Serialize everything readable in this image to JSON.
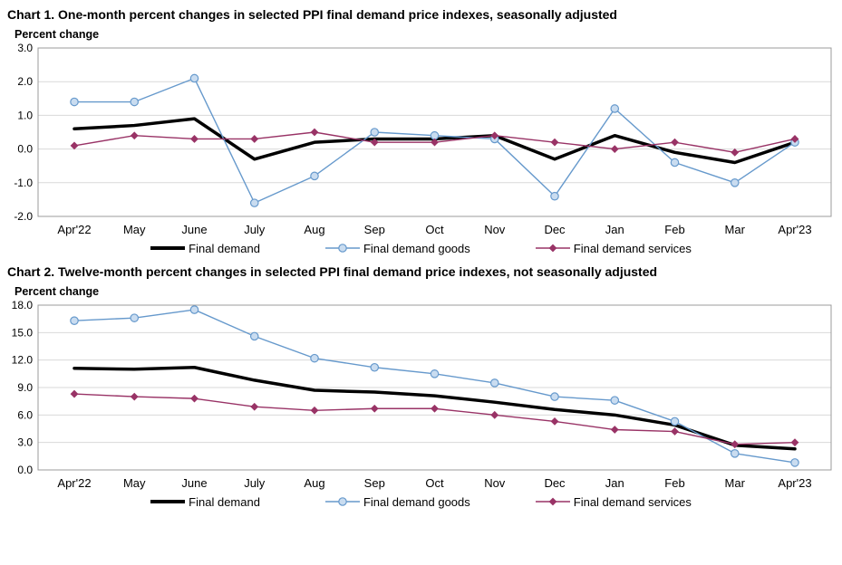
{
  "colors": {
    "grid": "#D9D9D9",
    "plot_border": "#9B9B9B",
    "text": "#000000",
    "background": "#FFFFFF",
    "final_demand": "#000000",
    "goods_line": "#6699CC",
    "goods_marker_fill": "#C9DCF0",
    "services_line": "#993366"
  },
  "chart_data": [
    {
      "type": "line",
      "title": "Chart 1. One-month percent changes in selected PPI final demand price indexes, seasonally adjusted",
      "ylabel": "Percent change",
      "xlabel": "",
      "grid": true,
      "legend_position": "bottom",
      "ylim": [
        -2.0,
        3.0
      ],
      "ytick_step": 1.0,
      "categories": [
        "Apr'22",
        "May",
        "June",
        "July",
        "Aug",
        "Sep",
        "Oct",
        "Nov",
        "Dec",
        "Jan",
        "Feb",
        "Mar",
        "Apr'23"
      ],
      "series": [
        {
          "name": "Final demand",
          "color": "#000000",
          "line_width": 3.5,
          "marker": "none",
          "values": [
            0.6,
            0.7,
            0.9,
            -0.3,
            0.2,
            0.3,
            0.3,
            0.4,
            -0.3,
            0.4,
            -0.1,
            -0.4,
            0.2
          ]
        },
        {
          "name": "Final demand goods",
          "color": "#6699CC",
          "marker_fill": "#C9DCF0",
          "line_width": 1.4,
          "marker": "circle",
          "values": [
            1.4,
            1.4,
            2.1,
            -1.6,
            -0.8,
            0.5,
            0.4,
            0.3,
            -1.4,
            1.2,
            -0.4,
            -1.0,
            0.2
          ]
        },
        {
          "name": "Final demand services",
          "color": "#993366",
          "line_width": 1.4,
          "marker": "diamond",
          "values": [
            0.1,
            0.4,
            0.3,
            0.3,
            0.5,
            0.2,
            0.2,
            0.4,
            0.2,
            0.0,
            0.2,
            -0.1,
            0.3
          ]
        }
      ]
    },
    {
      "type": "line",
      "title": "Chart 2. Twelve-month percent changes in selected PPI final demand price indexes, not seasonally adjusted",
      "ylabel": "Percent change",
      "xlabel": "",
      "grid": true,
      "legend_position": "bottom",
      "ylim": [
        0.0,
        18.0
      ],
      "ytick_step": 3.0,
      "categories": [
        "Apr'22",
        "May",
        "June",
        "July",
        "Aug",
        "Sep",
        "Oct",
        "Nov",
        "Dec",
        "Jan",
        "Feb",
        "Mar",
        "Apr'23"
      ],
      "series": [
        {
          "name": "Final demand",
          "color": "#000000",
          "line_width": 3.5,
          "marker": "none",
          "values": [
            11.1,
            11.0,
            11.2,
            9.8,
            8.7,
            8.5,
            8.1,
            7.4,
            6.6,
            6.0,
            4.9,
            2.7,
            2.3
          ]
        },
        {
          "name": "Final demand goods",
          "color": "#6699CC",
          "marker_fill": "#C9DCF0",
          "line_width": 1.4,
          "marker": "circle",
          "values": [
            16.3,
            16.6,
            17.5,
            14.6,
            12.2,
            11.2,
            10.5,
            9.5,
            8.0,
            7.6,
            5.3,
            1.8,
            0.8
          ]
        },
        {
          "name": "Final demand services",
          "color": "#993366",
          "line_width": 1.4,
          "marker": "diamond",
          "values": [
            8.3,
            8.0,
            7.8,
            6.9,
            6.5,
            6.7,
            6.7,
            6.0,
            5.3,
            4.4,
            4.2,
            2.8,
            3.0
          ]
        }
      ]
    }
  ]
}
